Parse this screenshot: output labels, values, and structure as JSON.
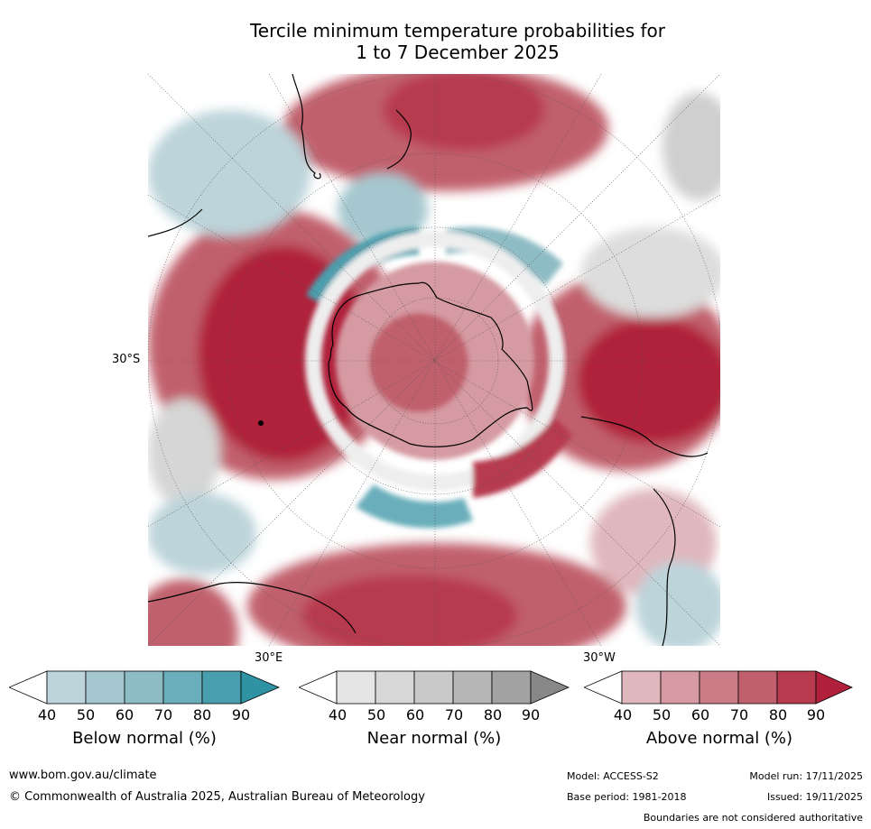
{
  "title_line1": "Tercile minimum temperature probabilities for",
  "title_line2": "1 to 7 December 2025",
  "map": {
    "lat_label": "30°S",
    "lon_label_east": "30°E",
    "lon_label_west": "30°W",
    "colors": {
      "above": [
        "#e0b7bd",
        "#d59aa2",
        "#cb7c87",
        "#c1606d",
        "#b73a4f",
        "#b0203b"
      ],
      "below": [
        "#bcd4da",
        "#a5c7cf",
        "#8ebcc5",
        "#6baebb",
        "#4a9fae",
        "#2f93a4"
      ],
      "near": [
        "#e8e8e8",
        "#d8d8d8",
        "#c8c8c8",
        "#b6b6b6",
        "#a2a2a2",
        "#8a8a8a"
      ]
    }
  },
  "colorbars": [
    {
      "label": "Below normal (%)",
      "ticks": [
        "40",
        "50",
        "60",
        "70",
        "80",
        "90"
      ],
      "colors": [
        "#ffffff",
        "#bcd4da",
        "#a5c7cf",
        "#8ebcc5",
        "#6baebb",
        "#4a9fae",
        "#2f93a4"
      ]
    },
    {
      "label": "Near normal (%)",
      "ticks": [
        "40",
        "50",
        "60",
        "70",
        "80",
        "90"
      ],
      "colors": [
        "#ffffff",
        "#e5e5e5",
        "#d7d7d7",
        "#c9c9c9",
        "#b6b6b6",
        "#a2a2a2",
        "#888888"
      ]
    },
    {
      "label": "Above normal (%)",
      "ticks": [
        "40",
        "50",
        "60",
        "70",
        "80",
        "90"
      ],
      "colors": [
        "#ffffff",
        "#e0b7bd",
        "#d59aa2",
        "#cb7c87",
        "#c1606d",
        "#b73a4f",
        "#b0203b"
      ]
    }
  ],
  "footer": {
    "website": "www.bom.gov.au/climate",
    "copyright": "© Commonwealth of Australia 2025, Australian Bureau of Meteorology",
    "model": "Model: ACCESS-S2",
    "base_period": "Base period: 1981-2018",
    "model_run": "Model run: 17/11/2025",
    "issued": "Issued: 19/11/2025",
    "boundaries": "Boundaries are not considered authoritative"
  }
}
